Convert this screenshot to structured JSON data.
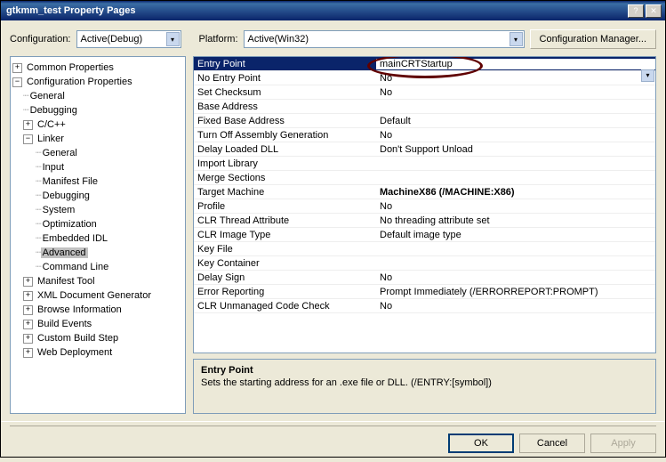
{
  "title": "gtkmm_test Property Pages",
  "config_label": "Configuration:",
  "config_value": "Active(Debug)",
  "platform_label": "Platform:",
  "platform_value": "Active(Win32)",
  "cfgmgr_label": "Configuration Manager...",
  "tree": {
    "common": "Common Properties",
    "configp": "Configuration Properties",
    "general": "General",
    "debugging": "Debugging",
    "cpp": "C/C++",
    "linker": "Linker",
    "l_general": "General",
    "l_input": "Input",
    "l_manifest": "Manifest File",
    "l_debug": "Debugging",
    "l_system": "System",
    "l_opt": "Optimization",
    "l_idl": "Embedded IDL",
    "l_adv": "Advanced",
    "l_cmd": "Command Line",
    "manifest_tool": "Manifest Tool",
    "xmldoc": "XML Document Generator",
    "browse": "Browse Information",
    "build": "Build Events",
    "custom": "Custom Build Step",
    "web": "Web Deployment"
  },
  "props": [
    {
      "k": "Entry Point",
      "v": "mainCRTStartup",
      "sel": true,
      "ellipse": true
    },
    {
      "k": "No Entry Point",
      "v": "No"
    },
    {
      "k": "Set Checksum",
      "v": "No"
    },
    {
      "k": "Base Address",
      "v": ""
    },
    {
      "k": "Fixed Base Address",
      "v": "Default"
    },
    {
      "k": "Turn Off Assembly Generation",
      "v": "No"
    },
    {
      "k": "Delay Loaded DLL",
      "v": "Don't Support Unload"
    },
    {
      "k": "Import Library",
      "v": ""
    },
    {
      "k": "Merge Sections",
      "v": ""
    },
    {
      "k": "Target Machine",
      "v": "MachineX86 (/MACHINE:X86)",
      "bold": true
    },
    {
      "k": "Profile",
      "v": "No"
    },
    {
      "k": "CLR Thread Attribute",
      "v": "No threading attribute set"
    },
    {
      "k": "CLR Image Type",
      "v": "Default image type"
    },
    {
      "k": "Key File",
      "v": ""
    },
    {
      "k": "Key Container",
      "v": ""
    },
    {
      "k": "Delay Sign",
      "v": "No"
    },
    {
      "k": "Error Reporting",
      "v": "Prompt Immediately (/ERRORREPORT:PROMPT)"
    },
    {
      "k": "CLR Unmanaged Code Check",
      "v": "No"
    }
  ],
  "desc_title": "Entry Point",
  "desc_body": "Sets the starting address for an .exe file or DLL.     (/ENTRY:[symbol])",
  "btn_ok": "OK",
  "btn_cancel": "Cancel",
  "btn_apply": "Apply"
}
